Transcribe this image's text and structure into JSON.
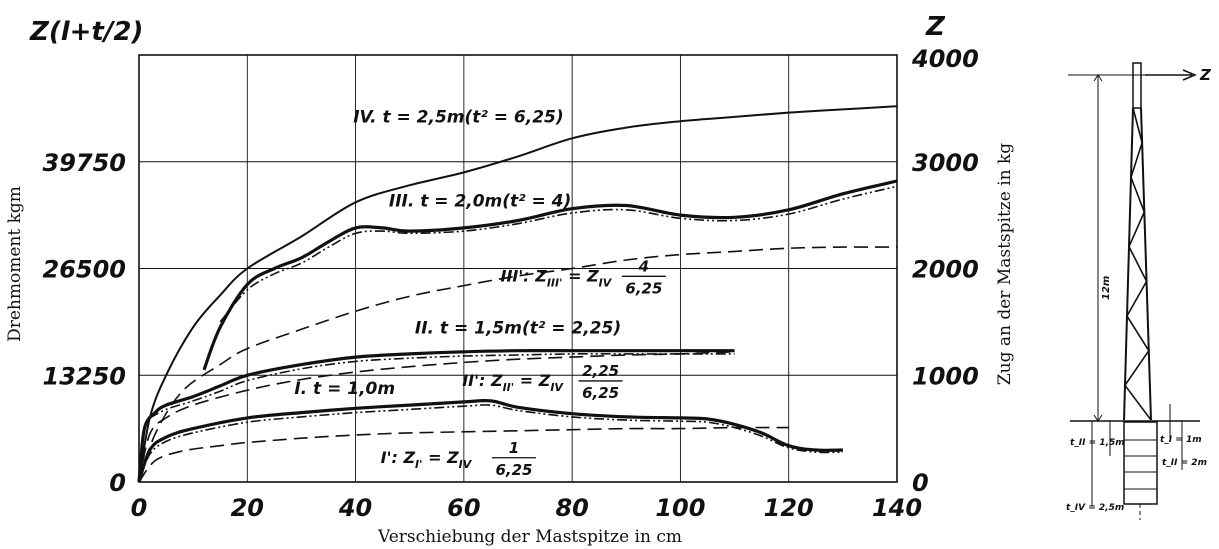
{
  "chart_data": {
    "type": "line",
    "xlabel": "Verschiebung der Mastspitze in cm",
    "ylabel_left": "Drehmoment kgm",
    "ylabel_left_top": "Z(l+t/2)",
    "ylabel_right": "Zug an der Mastspitze in kg",
    "ylabel_right_top": "Z",
    "xlim": [
      0,
      140
    ],
    "ylim_right": [
      0,
      4000
    ],
    "x_ticks": [
      "0",
      "20",
      "40",
      "60",
      "80",
      "100",
      "120",
      "140"
    ],
    "y_ticks_left": [
      {
        "label": "0",
        "z": 0
      },
      {
        "label": "13250",
        "z": 1000
      },
      {
        "label": "26500",
        "z": 2000
      },
      {
        "label": "39750",
        "z": 3000
      }
    ],
    "y_ticks_right": [
      "0",
      "1000",
      "2000",
      "3000",
      "4000"
    ],
    "grid": true,
    "series": [
      {
        "name": "IV. t = 2,5m(t² = 6,25)",
        "style": "solid",
        "weight": "thin",
        "x": [
          0,
          2,
          5,
          10,
          15,
          20,
          30,
          40,
          50,
          60,
          70,
          80,
          90,
          100,
          110,
          120,
          130,
          140
        ],
        "y": [
          0,
          600,
          1000,
          1450,
          1750,
          2000,
          2300,
          2620,
          2780,
          2900,
          3050,
          3220,
          3320,
          3380,
          3420,
          3460,
          3490,
          3520
        ]
      },
      {
        "name": "III. t = 2,0m(t² = 4)",
        "style": "solid",
        "weight": "thick",
        "x": [
          12,
          15,
          20,
          25,
          30,
          35,
          40,
          45,
          50,
          60,
          70,
          80,
          90,
          100,
          110,
          120,
          130,
          140
        ],
        "y": [
          1050,
          1450,
          1850,
          2000,
          2100,
          2250,
          2380,
          2380,
          2350,
          2380,
          2450,
          2560,
          2590,
          2500,
          2480,
          2550,
          2700,
          2820
        ]
      },
      {
        "name": "III.",
        "style": "dashdot",
        "weight": "thin",
        "x": [
          15,
          20,
          25,
          30,
          35,
          40,
          45,
          50,
          60,
          70,
          80,
          90,
          100,
          110,
          120,
          130,
          140
        ],
        "y": [
          1500,
          1800,
          1950,
          2050,
          2200,
          2330,
          2350,
          2330,
          2350,
          2420,
          2520,
          2550,
          2470,
          2450,
          2510,
          2650,
          2770
        ]
      },
      {
        "name": "III': Z_III' = Z_IV 4/6,25",
        "style": "dashed",
        "weight": "thin",
        "x": [
          0,
          3,
          8,
          15,
          20,
          30,
          40,
          50,
          60,
          70,
          80,
          90,
          100,
          110,
          120,
          130,
          140
        ],
        "y": [
          0,
          450,
          850,
          1100,
          1250,
          1430,
          1600,
          1740,
          1840,
          1930,
          2000,
          2080,
          2130,
          2160,
          2190,
          2200,
          2200
        ]
      },
      {
        "name": "II. t = 1,5m(t² = 2,25)",
        "style": "solid",
        "weight": "thick",
        "x": [
          0,
          1,
          3,
          5,
          10,
          15,
          20,
          30,
          40,
          50,
          60,
          70,
          80,
          90,
          100,
          110
        ],
        "y": [
          0,
          500,
          650,
          720,
          800,
          900,
          1000,
          1100,
          1170,
          1200,
          1220,
          1230,
          1230,
          1230,
          1230,
          1230
        ]
      },
      {
        "name": "II.",
        "style": "dashdot",
        "weight": "thin",
        "x": [
          2,
          5,
          10,
          15,
          20,
          30,
          40,
          50,
          60,
          70,
          80,
          90,
          100,
          110
        ],
        "y": [
          600,
          680,
          760,
          850,
          950,
          1060,
          1130,
          1160,
          1180,
          1190,
          1200,
          1200,
          1200,
          1200
        ]
      },
      {
        "name": "II': Z_II' = Z_IV 2,25/6,25",
        "style": "dashed",
        "weight": "thin",
        "x": [
          0,
          2,
          5,
          10,
          20,
          30,
          40,
          50,
          60,
          70,
          80,
          90,
          100,
          110
        ],
        "y": [
          0,
          450,
          600,
          720,
          860,
          960,
          1030,
          1080,
          1120,
          1150,
          1170,
          1190,
          1200,
          1220
        ]
      },
      {
        "name": "I. t = 1,0m",
        "style": "solid",
        "weight": "thick",
        "x": [
          0,
          2,
          5,
          10,
          20,
          30,
          40,
          50,
          60,
          65,
          70,
          80,
          90,
          100,
          105,
          110,
          115,
          120,
          125,
          130
        ],
        "y": [
          0,
          300,
          420,
          500,
          600,
          650,
          690,
          720,
          750,
          760,
          700,
          640,
          610,
          600,
          590,
          540,
          460,
          340,
          300,
          300
        ]
      },
      {
        "name": "I.",
        "style": "dashdot",
        "weight": "thin",
        "x": [
          0,
          2,
          5,
          10,
          20,
          30,
          40,
          50,
          60,
          65,
          70,
          80,
          90,
          100,
          105,
          110,
          115,
          120,
          125,
          130
        ],
        "y": [
          0,
          260,
          380,
          460,
          560,
          610,
          650,
          680,
          710,
          720,
          670,
          610,
          580,
          570,
          560,
          510,
          430,
          320,
          280,
          280
        ]
      },
      {
        "name": "I': Z_I' = Z_IV 1/6,25",
        "style": "dashed",
        "weight": "thin",
        "x": [
          0,
          3,
          8,
          15,
          20,
          30,
          40,
          50,
          60,
          70,
          80,
          90,
          100,
          110,
          120
        ],
        "y": [
          0,
          200,
          290,
          340,
          370,
          410,
          440,
          460,
          470,
          480,
          490,
          500,
          500,
          510,
          510
        ]
      }
    ],
    "annotations": [
      {
        "id": "IV",
        "x": 59,
        "z": 3370,
        "text": "IV. t = 2,5m(t² = 6,25)"
      },
      {
        "id": "III",
        "x": 63,
        "z": 2580,
        "text": "III. t = 2,0m(t² = 4)"
      },
      {
        "id": "II",
        "x": 70,
        "z": 1390,
        "text": "II. t = 1,5m(t² = 2,25)"
      },
      {
        "id": "I",
        "x": 38,
        "z": 825,
        "text": "I. t = 1,0m"
      }
    ],
    "formula_labels": [
      {
        "id": "IIIp",
        "x": 77,
        "z": 1880,
        "lhs": "III': Z",
        "sub1": "III'",
        "eq": " = Z",
        "sub2": "IV",
        "num": "4",
        "den": "6,25"
      },
      {
        "id": "IIp",
        "x": 69,
        "z": 900,
        "lhs": "II': Z",
        "sub1": "II'",
        "eq": " = Z",
        "sub2": "IV",
        "num": "2,25",
        "den": "6,25"
      },
      {
        "id": "Ip",
        "x": 53,
        "z": 180,
        "lhs": "I': Z",
        "sub1": "I'",
        "eq": " = Z",
        "sub2": "IV",
        "num": "1",
        "den": "6,25"
      }
    ]
  },
  "mast_diagram": {
    "force_label": "Z",
    "height_label": "12m",
    "depth_labels": [
      "t_I = 1m",
      "t_II = 1,5m",
      "t_II = 2m",
      "t_IV = 2,5m"
    ]
  }
}
